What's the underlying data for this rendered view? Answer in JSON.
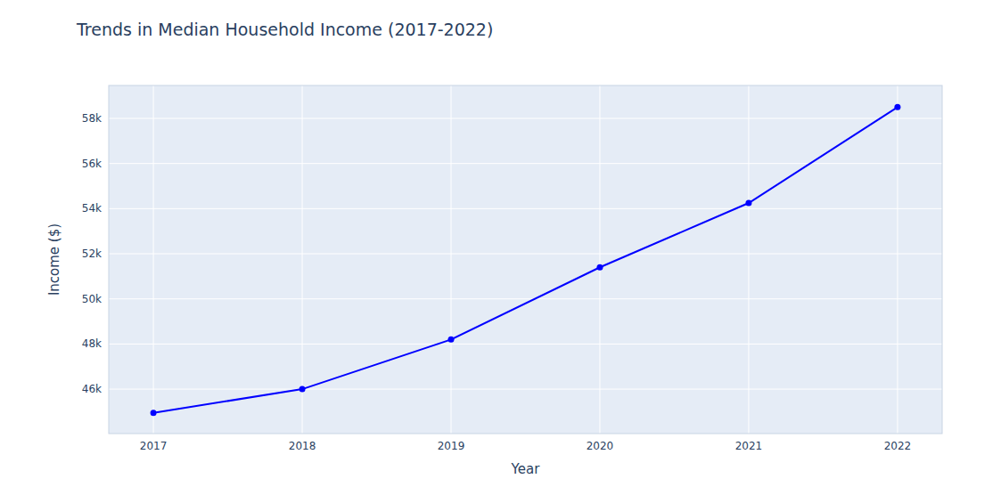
{
  "chart_data": {
    "type": "line",
    "title": "Trends in Median Household Income (2017-2022)",
    "x_label": "Year",
    "y_label": "Income ($)",
    "x": [
      2017,
      2018,
      2019,
      2020,
      2021,
      2022
    ],
    "values": [
      44950,
      46000,
      48200,
      51400,
      54250,
      58500
    ],
    "color": "blue",
    "marker": "circle",
    "xlim": [
      2016.7,
      2022.3
    ],
    "xticks": [
      2017,
      2018,
      2019,
      2020,
      2021,
      2022
    ],
    "ylim": [
      44030,
      59460
    ],
    "yticks": [
      {
        "value": 46000,
        "label": "46k"
      },
      {
        "value": 48000,
        "label": "48k"
      },
      {
        "value": 50000,
        "label": "50k"
      },
      {
        "value": 52000,
        "label": "52k"
      },
      {
        "value": 54000,
        "label": "54k"
      },
      {
        "value": 56000,
        "label": "56k"
      },
      {
        "value": 58000,
        "label": "58k"
      }
    ],
    "grid": true
  }
}
